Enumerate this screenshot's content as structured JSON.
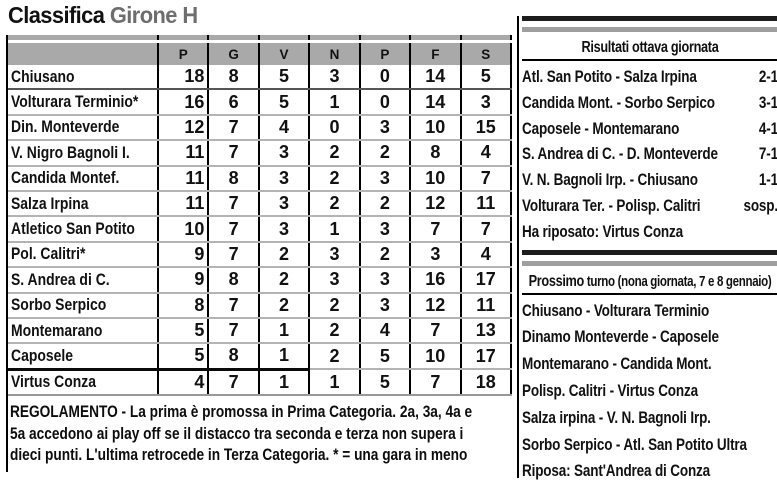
{
  "title": {
    "main": "Classifica",
    "group": "Girone H"
  },
  "standings": {
    "columns": [
      "P",
      "G",
      "V",
      "N",
      "P",
      "F",
      "S"
    ],
    "rows": [
      {
        "team": "Chiusano",
        "vals": [
          "18",
          "8",
          "5",
          "3",
          "0",
          "14",
          "5"
        ]
      },
      {
        "team": "Volturara Terminio*",
        "vals": [
          "16",
          "6",
          "5",
          "1",
          "0",
          "14",
          "3"
        ]
      },
      {
        "team": "Din. Monteverde",
        "vals": [
          "12",
          "7",
          "4",
          "0",
          "3",
          "10",
          "15"
        ]
      },
      {
        "team": "V. Nigro Bagnoli I.",
        "vals": [
          "11",
          "7",
          "3",
          "2",
          "2",
          "8",
          "4"
        ]
      },
      {
        "team": "Candida Montef.",
        "vals": [
          "11",
          "8",
          "3",
          "2",
          "3",
          "10",
          "7"
        ]
      },
      {
        "team": "Salza Irpina",
        "vals": [
          "11",
          "7",
          "3",
          "2",
          "2",
          "12",
          "11"
        ]
      },
      {
        "team": "Atletico San Potito",
        "vals": [
          "10",
          "7",
          "3",
          "1",
          "3",
          "7",
          "7"
        ]
      },
      {
        "team": "Pol. Calitri*",
        "vals": [
          "9",
          "7",
          "2",
          "3",
          "2",
          "3",
          "4"
        ]
      },
      {
        "team": "S. Andrea di C.",
        "vals": [
          "9",
          "8",
          "2",
          "3",
          "3",
          "16",
          "17"
        ]
      },
      {
        "team": "Sorbo Serpico",
        "vals": [
          "8",
          "7",
          "2",
          "2",
          "3",
          "12",
          "11"
        ]
      },
      {
        "team": "Montemarano",
        "vals": [
          "5",
          "7",
          "1",
          "2",
          "4",
          "7",
          "13"
        ]
      },
      {
        "team": "Caposele",
        "vals": [
          "5",
          "8",
          "1",
          "2",
          "5",
          "10",
          "17"
        ]
      },
      {
        "team": "Virtus Conza",
        "vals": [
          "4",
          "7",
          "1",
          "1",
          "5",
          "7",
          "18"
        ]
      }
    ],
    "note": {
      "line1_bold": "REGOLAMENTO",
      "line1_rest": " - La prima è promossa in Prima Categoria. 2a, 3a, 4a e",
      "line2": "5a accedono ai play off se il distacco tra seconda e terza non supera i",
      "line3": "dieci punti. L'ultima retrocede in Terza Categoria.  * = una gara in meno"
    }
  },
  "results": {
    "title": "Risultati ottava giornata",
    "matches": [
      {
        "fixture": "Atl. San Potito - Salza Irpina",
        "score": "2-1"
      },
      {
        "fixture": "Candida Mont. - Sorbo Serpico",
        "score": "3-1"
      },
      {
        "fixture": "Caposele - Montemarano",
        "score": "4-1"
      },
      {
        "fixture": "S. Andrea di C. - D. Monteverde",
        "score": "7-1"
      },
      {
        "fixture": "V. N. Bagnoli Irp. - Chiusano",
        "score": "1-1"
      },
      {
        "fixture": "Volturara Ter. - Polisp. Calitri",
        "score": "sosp."
      }
    ],
    "rest_note": "Ha riposato: Virtus Conza"
  },
  "next_round": {
    "title_bold": "Prossimo",
    "title_rest": " turno (nona giornata, 7 e 8 gennaio)",
    "matches": [
      "Chiusano - Volturara Terminio",
      "Dinamo Monteverde - Caposele",
      "Montemarano - Candida Mont.",
      "Polisp. Calitri - Virtus Conza",
      "Salza irpina - V. N. Bagnoli Irp.",
      "Sorbo Serpico - Atl. San Potito Ultra",
      "Riposa: Sant'Andrea di Conza"
    ]
  },
  "colors": {
    "header_gray": "#a9a9a9",
    "title_gray": "#6e6e6e",
    "bar_dark": "#1c1c1c",
    "bar_gray": "#9e9e9e",
    "row_separator": "#b3b3b3",
    "text": "#111111"
  }
}
